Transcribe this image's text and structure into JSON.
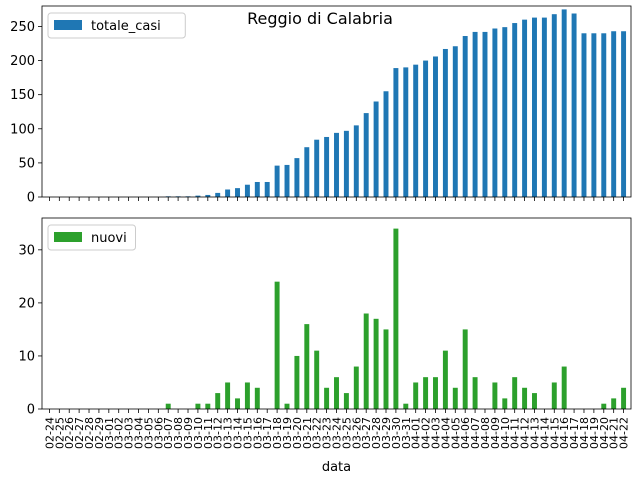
{
  "title": "Reggio di Calabria",
  "colors": {
    "totale_casi": "#1f77b4",
    "nuovi": "#2ca02c"
  },
  "chart_data": [
    {
      "type": "bar",
      "title": "Reggio di Calabria",
      "xlabel": "",
      "ylabel": "",
      "ylim": [
        0,
        280
      ],
      "yticks": [
        0,
        50,
        100,
        150,
        200,
        250
      ],
      "grid": false,
      "legend": "upper left",
      "x_ticklabels_shown": false,
      "categories": [
        "02-24",
        "02-25",
        "02-26",
        "02-27",
        "02-28",
        "02-29",
        "03-01",
        "03-02",
        "03-03",
        "03-04",
        "03-05",
        "03-06",
        "03-07",
        "03-08",
        "03-09",
        "03-10",
        "03-11",
        "03-12",
        "03-13",
        "03-14",
        "03-15",
        "03-16",
        "03-17",
        "03-18",
        "03-19",
        "03-20",
        "03-21",
        "03-22",
        "03-23",
        "03-24",
        "03-25",
        "03-26",
        "03-27",
        "03-28",
        "03-29",
        "03-30",
        "03-31",
        "04-01",
        "04-02",
        "04-03",
        "04-04",
        "04-05",
        "04-06",
        "04-07",
        "04-08",
        "04-09",
        "04-10",
        "04-11",
        "04-12",
        "04-13",
        "04-14",
        "04-15",
        "04-16",
        "04-17",
        "04-18",
        "04-19",
        "04-20",
        "04-21",
        "04-22"
      ],
      "series": [
        {
          "name": "totale_casi",
          "values": [
            0,
            0,
            0,
            0,
            0,
            0,
            0,
            0,
            0,
            0,
            0,
            0,
            1,
            1,
            1,
            2,
            3,
            6,
            11,
            13,
            18,
            22,
            22,
            46,
            47,
            57,
            73,
            84,
            88,
            94,
            97,
            105,
            123,
            140,
            155,
            189,
            190,
            194,
            200,
            206,
            217,
            221,
            236,
            242,
            242,
            247,
            249,
            255,
            260,
            263,
            263,
            268,
            275,
            269,
            240,
            240,
            240,
            243,
            243
          ]
        }
      ]
    },
    {
      "type": "bar",
      "xlabel": "data",
      "ylabel": "",
      "ylim": [
        0,
        36
      ],
      "yticks": [
        0,
        10,
        20,
        30
      ],
      "grid": false,
      "legend": "upper left",
      "categories": [
        "02-24",
        "02-25",
        "02-26",
        "02-27",
        "02-28",
        "02-29",
        "03-01",
        "03-02",
        "03-03",
        "03-04",
        "03-05",
        "03-06",
        "03-07",
        "03-08",
        "03-09",
        "03-10",
        "03-11",
        "03-12",
        "03-13",
        "03-14",
        "03-15",
        "03-16",
        "03-17",
        "03-18",
        "03-19",
        "03-20",
        "03-21",
        "03-22",
        "03-23",
        "03-24",
        "03-25",
        "03-26",
        "03-27",
        "03-28",
        "03-29",
        "03-30",
        "03-31",
        "04-01",
        "04-02",
        "04-03",
        "04-04",
        "04-05",
        "04-06",
        "04-07",
        "04-08",
        "04-09",
        "04-10",
        "04-11",
        "04-12",
        "04-13",
        "04-14",
        "04-15",
        "04-16",
        "04-17",
        "04-18",
        "04-19",
        "04-20",
        "04-21",
        "04-22"
      ],
      "series": [
        {
          "name": "nuovi",
          "values": [
            0,
            0,
            0,
            0,
            0,
            0,
            0,
            0,
            0,
            0,
            0,
            0,
            1,
            0,
            0,
            1,
            1,
            3,
            5,
            2,
            5,
            4,
            0,
            24,
            1,
            10,
            16,
            11,
            4,
            6,
            3,
            8,
            18,
            17,
            15,
            34,
            1,
            5,
            6,
            6,
            11,
            4,
            15,
            6,
            0,
            5,
            2,
            6,
            4,
            3,
            0,
            5,
            8,
            0,
            0,
            0,
            1,
            2,
            4
          ]
        }
      ]
    }
  ]
}
